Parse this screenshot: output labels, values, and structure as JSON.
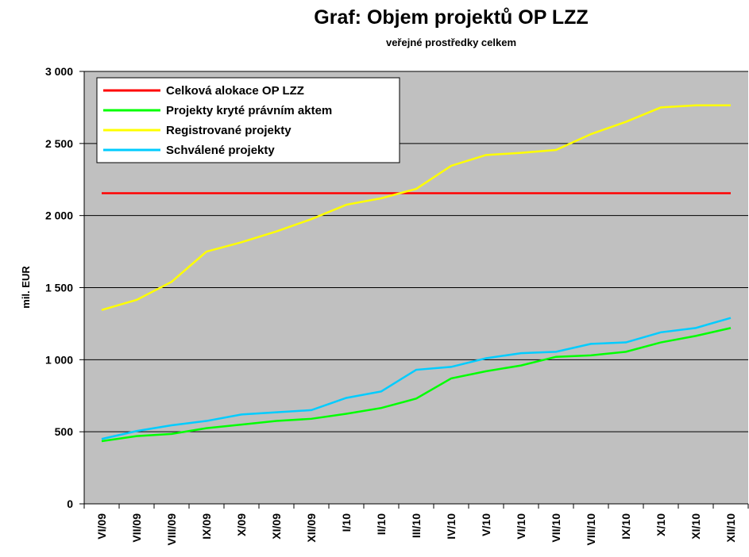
{
  "chart_data": {
    "type": "line",
    "title": "Graf: Objem projektů OP LZZ",
    "subtitle": "veřejné prostředky celkem",
    "y_label": "mil. EUR",
    "categories": [
      "VI/09",
      "VII/09",
      "VIII/09",
      "IX/09",
      "X/09",
      "XI/09",
      "XII/09",
      "I/10",
      "II/10",
      "III/10",
      "IV/10",
      "V/10",
      "VI/10",
      "VII/10",
      "VIII/10",
      "IX/10",
      "X/10",
      "XI/10",
      "XII/10"
    ],
    "series": [
      {
        "name": "Celková alokace OP LZZ",
        "color": "#ff0000",
        "values": [
          2155,
          2155,
          2155,
          2155,
          2155,
          2155,
          2155,
          2155,
          2155,
          2155,
          2155,
          2155,
          2155,
          2155,
          2155,
          2155,
          2155,
          2155,
          2155
        ]
      },
      {
        "name": "Projekty kryté právním aktem",
        "color": "#00ff00",
        "values": [
          435,
          470,
          485,
          525,
          550,
          575,
          590,
          625,
          665,
          730,
          870,
          920,
          960,
          1020,
          1030,
          1055,
          1120,
          1165,
          1220
        ]
      },
      {
        "name": "Registrované projekty",
        "color": "#ffff00",
        "values": [
          1345,
          1415,
          1540,
          1750,
          1815,
          1890,
          1975,
          2075,
          2120,
          2185,
          2345,
          2420,
          2435,
          2455,
          2565,
          2650,
          2750,
          2765,
          2765
        ]
      },
      {
        "name": "Schválené projekty",
        "color": "#00ccff",
        "values": [
          450,
          505,
          545,
          575,
          620,
          635,
          650,
          735,
          780,
          930,
          950,
          1010,
          1045,
          1055,
          1110,
          1120,
          1190,
          1220,
          1290
        ]
      }
    ],
    "ylim": [
      0,
      3000
    ],
    "yticks": [
      0,
      500,
      {
        "value": 1000,
        "label": "1 000"
      },
      {
        "value": 1500,
        "label": "1 500"
      },
      {
        "value": 2000,
        "label": "2 000"
      },
      {
        "value": 2500,
        "label": "2 500"
      },
      {
        "value": 3000,
        "label": "3 000"
      }
    ],
    "grid": true,
    "legend": "top-left",
    "background": "#c0c0c0"
  }
}
